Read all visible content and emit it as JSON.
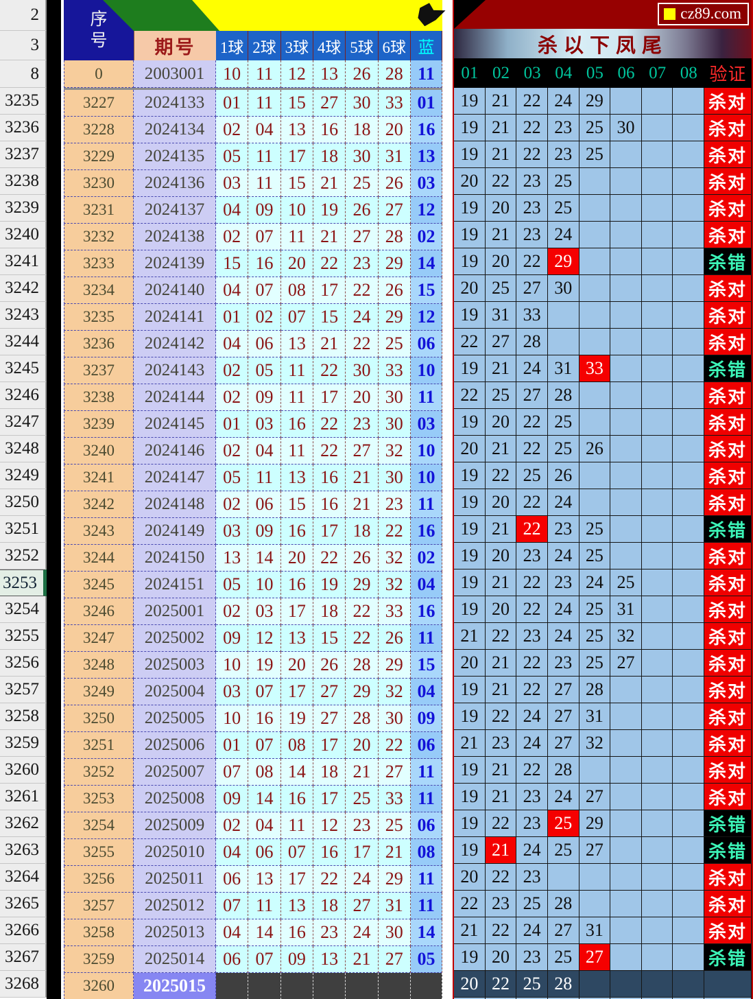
{
  "site": {
    "logo_text": "cz89.com"
  },
  "selected_row_header": "3253",
  "excel_row_headers": [
    "2",
    "3",
    "8",
    "3235",
    "3236",
    "3237",
    "3238",
    "3239",
    "3240",
    "3241",
    "3242",
    "3243",
    "3244",
    "3245",
    "3246",
    "3247",
    "3248",
    "3249",
    "3250",
    "3251",
    "3252",
    "3253",
    "3254",
    "3255",
    "3256",
    "3257",
    "3258",
    "3259",
    "3260",
    "3261",
    "3262",
    "3263",
    "3264",
    "3265",
    "3266",
    "3267",
    "3268"
  ],
  "left_table": {
    "serial_header": "序号",
    "issue_header": "期号",
    "ball_headers": [
      "1球",
      "2球",
      "3球",
      "4球",
      "5球",
      "6球"
    ],
    "blue_header": "蓝",
    "base_row": {
      "serial": "0",
      "issue": "2003001",
      "balls": [
        "10",
        "11",
        "12",
        "13",
        "26",
        "28"
      ],
      "blue": "11"
    },
    "rows": [
      {
        "serial": "3227",
        "issue": "2024133",
        "balls": [
          "01",
          "11",
          "15",
          "27",
          "30",
          "33"
        ],
        "blue": "01"
      },
      {
        "serial": "3228",
        "issue": "2024134",
        "balls": [
          "02",
          "04",
          "13",
          "16",
          "18",
          "20"
        ],
        "blue": "16"
      },
      {
        "serial": "3229",
        "issue": "2024135",
        "balls": [
          "05",
          "11",
          "17",
          "18",
          "30",
          "31"
        ],
        "blue": "13"
      },
      {
        "serial": "3230",
        "issue": "2024136",
        "balls": [
          "03",
          "11",
          "15",
          "21",
          "25",
          "26"
        ],
        "blue": "03"
      },
      {
        "serial": "3231",
        "issue": "2024137",
        "balls": [
          "04",
          "09",
          "10",
          "19",
          "26",
          "27"
        ],
        "blue": "12"
      },
      {
        "serial": "3232",
        "issue": "2024138",
        "balls": [
          "02",
          "07",
          "11",
          "21",
          "27",
          "28"
        ],
        "blue": "02"
      },
      {
        "serial": "3233",
        "issue": "2024139",
        "balls": [
          "15",
          "16",
          "20",
          "22",
          "23",
          "29"
        ],
        "blue": "14"
      },
      {
        "serial": "3234",
        "issue": "2024140",
        "balls": [
          "04",
          "07",
          "08",
          "17",
          "22",
          "26"
        ],
        "blue": "15"
      },
      {
        "serial": "3235",
        "issue": "2024141",
        "balls": [
          "01",
          "02",
          "07",
          "15",
          "24",
          "29"
        ],
        "blue": "12"
      },
      {
        "serial": "3236",
        "issue": "2024142",
        "balls": [
          "04",
          "06",
          "13",
          "21",
          "22",
          "25"
        ],
        "blue": "06"
      },
      {
        "serial": "3237",
        "issue": "2024143",
        "balls": [
          "02",
          "05",
          "11",
          "22",
          "30",
          "33"
        ],
        "blue": "10"
      },
      {
        "serial": "3238",
        "issue": "2024144",
        "balls": [
          "02",
          "09",
          "11",
          "17",
          "20",
          "30"
        ],
        "blue": "11"
      },
      {
        "serial": "3239",
        "issue": "2024145",
        "balls": [
          "01",
          "03",
          "16",
          "22",
          "23",
          "30"
        ],
        "blue": "03"
      },
      {
        "serial": "3240",
        "issue": "2024146",
        "balls": [
          "02",
          "04",
          "11",
          "22",
          "27",
          "32"
        ],
        "blue": "10"
      },
      {
        "serial": "3241",
        "issue": "2024147",
        "balls": [
          "05",
          "11",
          "13",
          "16",
          "21",
          "30"
        ],
        "blue": "10"
      },
      {
        "serial": "3242",
        "issue": "2024148",
        "balls": [
          "02",
          "06",
          "15",
          "16",
          "21",
          "23"
        ],
        "blue": "11"
      },
      {
        "serial": "3243",
        "issue": "2024149",
        "balls": [
          "03",
          "09",
          "16",
          "17",
          "18",
          "22"
        ],
        "blue": "16"
      },
      {
        "serial": "3244",
        "issue": "2024150",
        "balls": [
          "13",
          "14",
          "20",
          "22",
          "26",
          "32"
        ],
        "blue": "02"
      },
      {
        "serial": "3245",
        "issue": "2024151",
        "balls": [
          "05",
          "10",
          "16",
          "19",
          "29",
          "32"
        ],
        "blue": "04"
      },
      {
        "serial": "3246",
        "issue": "2025001",
        "balls": [
          "02",
          "03",
          "17",
          "18",
          "22",
          "33"
        ],
        "blue": "16"
      },
      {
        "serial": "3247",
        "issue": "2025002",
        "balls": [
          "09",
          "12",
          "13",
          "15",
          "22",
          "26"
        ],
        "blue": "11"
      },
      {
        "serial": "3248",
        "issue": "2025003",
        "balls": [
          "10",
          "19",
          "20",
          "26",
          "28",
          "29"
        ],
        "blue": "15"
      },
      {
        "serial": "3249",
        "issue": "2025004",
        "balls": [
          "03",
          "07",
          "17",
          "27",
          "29",
          "32"
        ],
        "blue": "04"
      },
      {
        "serial": "3250",
        "issue": "2025005",
        "balls": [
          "10",
          "16",
          "19",
          "27",
          "28",
          "30"
        ],
        "blue": "09"
      },
      {
        "serial": "3251",
        "issue": "2025006",
        "balls": [
          "01",
          "07",
          "08",
          "17",
          "20",
          "22"
        ],
        "blue": "06"
      },
      {
        "serial": "3252",
        "issue": "2025007",
        "balls": [
          "07",
          "08",
          "14",
          "18",
          "21",
          "27"
        ],
        "blue": "11"
      },
      {
        "serial": "3253",
        "issue": "2025008",
        "balls": [
          "09",
          "14",
          "16",
          "17",
          "25",
          "33"
        ],
        "blue": "11"
      },
      {
        "serial": "3254",
        "issue": "2025009",
        "balls": [
          "02",
          "04",
          "11",
          "12",
          "23",
          "25"
        ],
        "blue": "06"
      },
      {
        "serial": "3255",
        "issue": "2025010",
        "balls": [
          "04",
          "06",
          "07",
          "16",
          "17",
          "21"
        ],
        "blue": "08"
      },
      {
        "serial": "3256",
        "issue": "2025011",
        "balls": [
          "06",
          "13",
          "17",
          "22",
          "24",
          "29"
        ],
        "blue": "11"
      },
      {
        "serial": "3257",
        "issue": "2025012",
        "balls": [
          "07",
          "11",
          "13",
          "18",
          "27",
          "31"
        ],
        "blue": "11"
      },
      {
        "serial": "3258",
        "issue": "2025013",
        "balls": [
          "04",
          "14",
          "16",
          "23",
          "24",
          "30"
        ],
        "blue": "14"
      },
      {
        "serial": "3259",
        "issue": "2025014",
        "balls": [
          "06",
          "07",
          "09",
          "13",
          "21",
          "27"
        ],
        "blue": "05"
      }
    ],
    "pending_row": {
      "serial": "3260",
      "issue": "2025015"
    }
  },
  "right_table": {
    "banner_title": "杀以下凤尾",
    "column_headers": [
      "01",
      "02",
      "03",
      "04",
      "05",
      "06",
      "07",
      "08"
    ],
    "verify_header": "验证",
    "verdict_labels": {
      "correct": "杀对",
      "wrong": "杀错"
    },
    "rows": [
      {
        "values": [
          "19",
          "21",
          "22",
          "24",
          "29"
        ],
        "hit": null,
        "result": "correct"
      },
      {
        "values": [
          "19",
          "21",
          "22",
          "23",
          "25",
          "30"
        ],
        "hit": null,
        "result": "correct"
      },
      {
        "values": [
          "19",
          "21",
          "22",
          "23",
          "25"
        ],
        "hit": null,
        "result": "correct"
      },
      {
        "values": [
          "20",
          "22",
          "23",
          "25"
        ],
        "hit": null,
        "result": "correct"
      },
      {
        "values": [
          "19",
          "20",
          "23",
          "25"
        ],
        "hit": null,
        "result": "correct"
      },
      {
        "values": [
          "19",
          "21",
          "23",
          "24"
        ],
        "hit": null,
        "result": "correct"
      },
      {
        "values": [
          "19",
          "20",
          "22",
          "29"
        ],
        "hit": 3,
        "result": "wrong"
      },
      {
        "values": [
          "20",
          "25",
          "27",
          "30"
        ],
        "hit": null,
        "result": "correct"
      },
      {
        "values": [
          "19",
          "31",
          "33"
        ],
        "hit": null,
        "result": "correct"
      },
      {
        "values": [
          "22",
          "27",
          "28"
        ],
        "hit": null,
        "result": "correct"
      },
      {
        "values": [
          "19",
          "21",
          "24",
          "31",
          "33"
        ],
        "hit": 4,
        "result": "wrong"
      },
      {
        "values": [
          "22",
          "25",
          "27",
          "28"
        ],
        "hit": null,
        "result": "correct"
      },
      {
        "values": [
          "19",
          "20",
          "22",
          "25"
        ],
        "hit": null,
        "result": "correct"
      },
      {
        "values": [
          "20",
          "21",
          "22",
          "25",
          "26"
        ],
        "hit": null,
        "result": "correct"
      },
      {
        "values": [
          "19",
          "22",
          "25",
          "26"
        ],
        "hit": null,
        "result": "correct"
      },
      {
        "values": [
          "19",
          "20",
          "22",
          "24"
        ],
        "hit": null,
        "result": "correct"
      },
      {
        "values": [
          "19",
          "21",
          "22",
          "23",
          "25"
        ],
        "hit": 2,
        "result": "wrong"
      },
      {
        "values": [
          "19",
          "20",
          "23",
          "24",
          "25"
        ],
        "hit": null,
        "result": "correct"
      },
      {
        "values": [
          "19",
          "21",
          "22",
          "23",
          "24",
          "25"
        ],
        "hit": null,
        "result": "correct"
      },
      {
        "values": [
          "19",
          "20",
          "22",
          "24",
          "25",
          "31"
        ],
        "hit": null,
        "result": "correct"
      },
      {
        "values": [
          "21",
          "22",
          "23",
          "24",
          "25",
          "32"
        ],
        "hit": null,
        "result": "correct"
      },
      {
        "values": [
          "20",
          "21",
          "22",
          "23",
          "25",
          "27"
        ],
        "hit": null,
        "result": "correct"
      },
      {
        "values": [
          "19",
          "21",
          "22",
          "27",
          "28"
        ],
        "hit": null,
        "result": "correct"
      },
      {
        "values": [
          "19",
          "22",
          "24",
          "27",
          "31"
        ],
        "hit": null,
        "result": "correct"
      },
      {
        "values": [
          "21",
          "23",
          "24",
          "27",
          "32"
        ],
        "hit": null,
        "result": "correct"
      },
      {
        "values": [
          "19",
          "21",
          "22",
          "28"
        ],
        "hit": null,
        "result": "correct"
      },
      {
        "values": [
          "19",
          "21",
          "23",
          "24",
          "27"
        ],
        "hit": null,
        "result": "correct"
      },
      {
        "values": [
          "19",
          "22",
          "23",
          "25",
          "29"
        ],
        "hit": 3,
        "result": "wrong"
      },
      {
        "values": [
          "19",
          "21",
          "24",
          "25",
          "27"
        ],
        "hit": 1,
        "result": "wrong"
      },
      {
        "values": [
          "20",
          "22",
          "23"
        ],
        "hit": null,
        "result": "correct"
      },
      {
        "values": [
          "22",
          "23",
          "25",
          "28"
        ],
        "hit": null,
        "result": "correct"
      },
      {
        "values": [
          "21",
          "22",
          "24",
          "27",
          "31"
        ],
        "hit": null,
        "result": "correct"
      },
      {
        "values": [
          "19",
          "20",
          "23",
          "25",
          "27"
        ],
        "hit": 4,
        "result": "wrong"
      }
    ],
    "pending_row": {
      "values": [
        "20",
        "22",
        "25",
        "28"
      ]
    }
  },
  "colors": {
    "maroon_banner": "#970101",
    "verdict_correct_bg": "#F00000",
    "verdict_wrong_bg": "#000000",
    "verdict_wrong_text": "#3CF5B8",
    "highlight_red": "#F50000",
    "right_cell_bg": "#A0C6E8"
  }
}
